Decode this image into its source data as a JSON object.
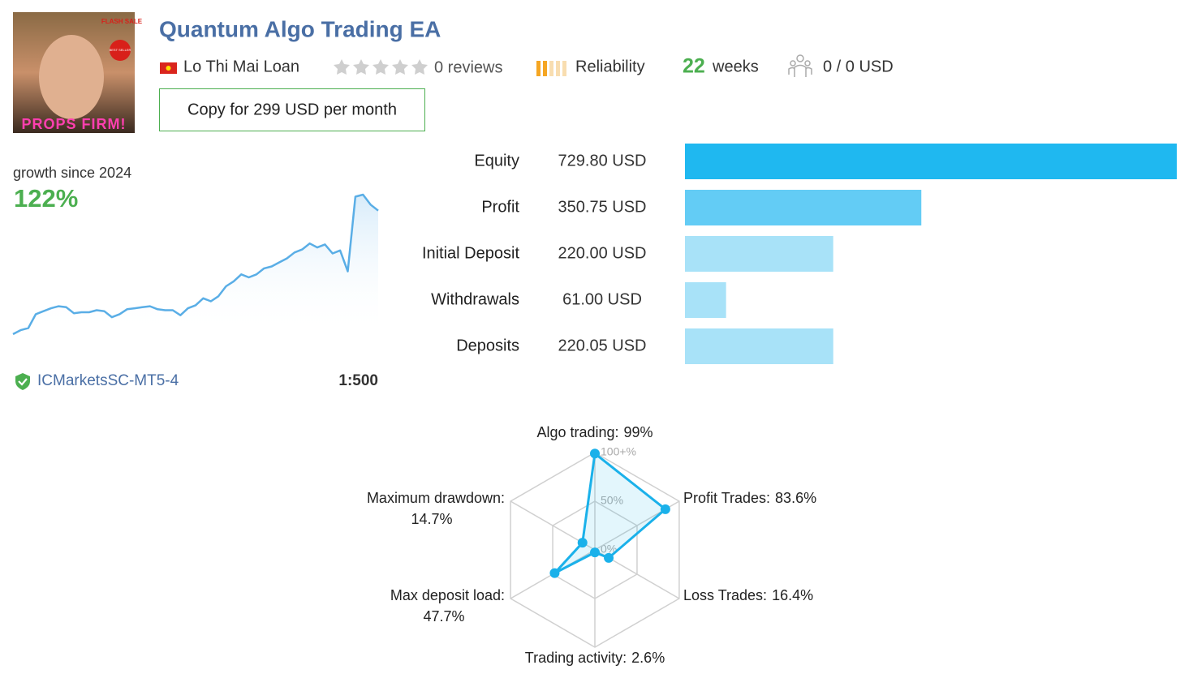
{
  "header": {
    "title": "Quantum Algo Trading EA",
    "author": "Lo Thi Mai Loan",
    "reviews": "0 reviews",
    "reliability": "Reliability",
    "weeks_value": "22",
    "weeks_label": "weeks",
    "subscribers": "0 / 0 USD",
    "copy_button": "Copy for 299 USD per month",
    "avatar_text": "PROPS FIRM!",
    "avatar_badge": "FLASH SALE",
    "avatar_seal": "BEST SELLER"
  },
  "growth": {
    "label": "growth since 2024",
    "value": "122%"
  },
  "growth_chart": {
    "type": "line",
    "color": "#5aaee6",
    "values": [
      0,
      4,
      6,
      20,
      23,
      26,
      28,
      27,
      21,
      22,
      22,
      24,
      23,
      17,
      20,
      25,
      26,
      27,
      28,
      25,
      24,
      24,
      19,
      26,
      29,
      36,
      33,
      38,
      48,
      53,
      60,
      57,
      60,
      66,
      68,
      72,
      76,
      82,
      85,
      91,
      87,
      90,
      81,
      84,
      63,
      138,
      140,
      130,
      124
    ]
  },
  "broker": {
    "server": "ICMarketsSC-MT5-4",
    "leverage": "1:500"
  },
  "stats_chart": {
    "type": "bar",
    "categories": [
      "Equity",
      "Profit",
      "Initial Deposit",
      "Withdrawals",
      "Deposits"
    ],
    "values": [
      729.8,
      350.75,
      220,
      61,
      220.05
    ],
    "value_labels": [
      "729.80 USD",
      "350.75 USD",
      "220.00 USD",
      "61.00 USD",
      "220.05 USD"
    ],
    "colors": [
      "#1fb8f0",
      "#63ccf5",
      "#a8e2f8",
      "#a8e2f8",
      "#a8e2f8"
    ]
  },
  "risk_chart": {
    "type": "radar",
    "color": "#1ab1ea",
    "categories": [
      "Algo trading:",
      "Profit Trades:",
      "Loss Trades:",
      "Trading activity:",
      "Max deposit load:",
      "Maximum drawdown:"
    ],
    "values": [
      99,
      83.6,
      16.4,
      2.6,
      47.7,
      14.7
    ],
    "value_labels": [
      "99%",
      "83.6%",
      "16.4%",
      "2.6%",
      "47.7%",
      "14.7%"
    ],
    "rlim": [
      0,
      100
    ],
    "rticks": [
      {
        "value": 0,
        "label": "0%"
      },
      {
        "value": 50,
        "label": "50%"
      },
      {
        "value": 100,
        "label": "100+%"
      }
    ]
  }
}
